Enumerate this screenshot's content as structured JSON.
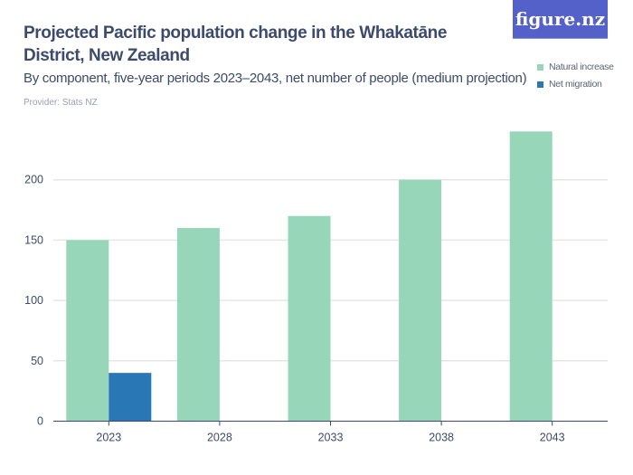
{
  "title": "Projected Pacific population change in the Whakatāne District, New Zealand",
  "subtitle": "By component, five-year periods 2023–2043, net number of people (medium projection)",
  "provider": "Provider: Stats NZ",
  "logo": "figure.nz",
  "chart_data": {
    "type": "bar",
    "categories": [
      "2023",
      "2028",
      "2033",
      "2038",
      "2043"
    ],
    "series": [
      {
        "name": "Natural increase",
        "color": "#97d6b9",
        "values": [
          150,
          160,
          170,
          200,
          240
        ]
      },
      {
        "name": "Net migration",
        "color": "#2a77b6",
        "values": [
          40,
          0,
          0,
          0,
          0
        ]
      }
    ],
    "yticks": [
      0,
      50,
      100,
      150,
      200
    ],
    "ylim": [
      0,
      240
    ],
    "grid": true,
    "legend": "top-right"
  }
}
